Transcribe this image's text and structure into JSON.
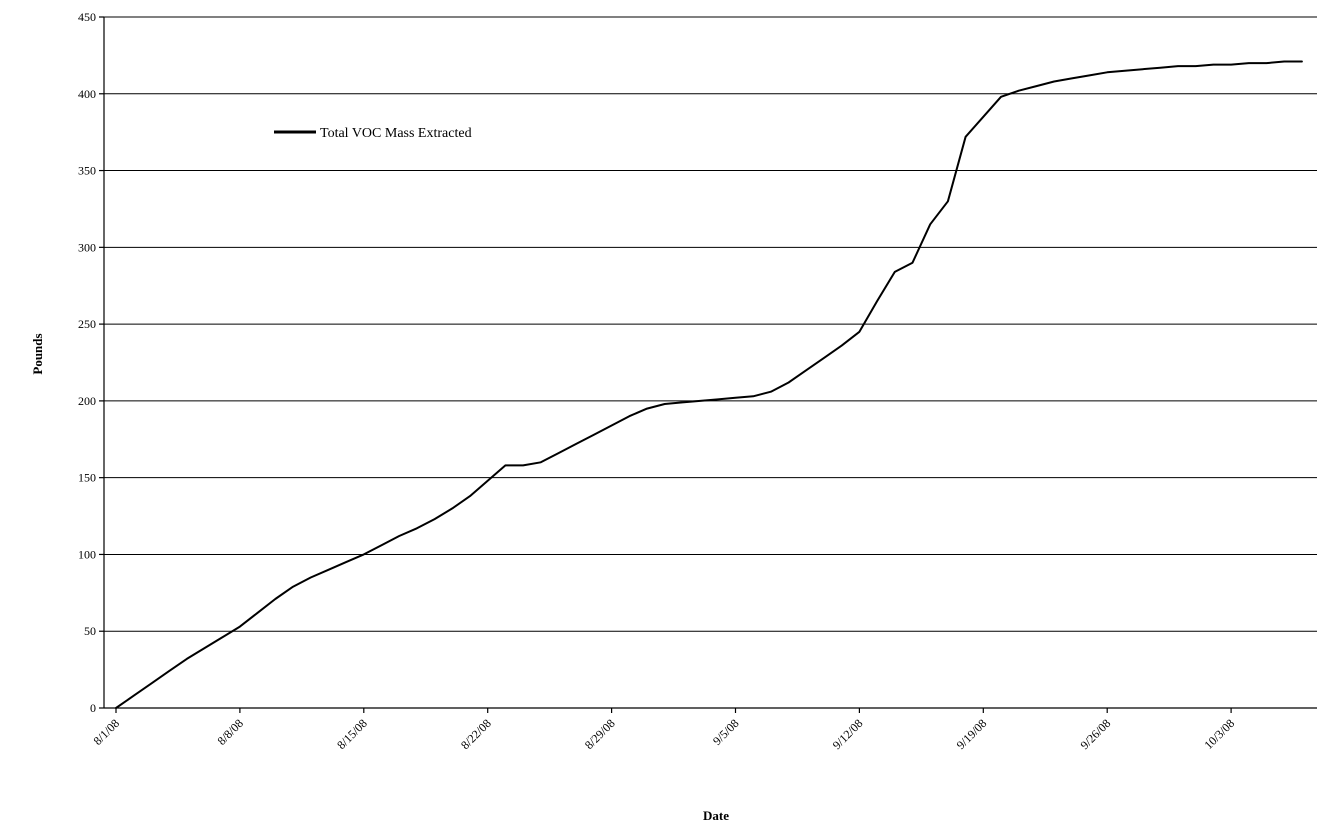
{
  "chart_data": {
    "type": "line",
    "title": "",
    "xlabel": "Date",
    "ylabel": "Pounds",
    "ylim": [
      0,
      450
    ],
    "y_ticks": [
      0,
      50,
      100,
      150,
      200,
      250,
      300,
      350,
      400,
      450
    ],
    "x_range": [
      "2008-08-01",
      "2008-10-07"
    ],
    "x_ticks": [
      {
        "date": "2008-08-01",
        "label": "8/1/08"
      },
      {
        "date": "2008-08-08",
        "label": "8/8/08"
      },
      {
        "date": "2008-08-15",
        "label": "8/15/08"
      },
      {
        "date": "2008-08-22",
        "label": "8/22/08"
      },
      {
        "date": "2008-08-29",
        "label": "8/29/08"
      },
      {
        "date": "2008-09-05",
        "label": "9/5/08"
      },
      {
        "date": "2008-09-12",
        "label": "9/12/08"
      },
      {
        "date": "2008-09-19",
        "label": "9/19/08"
      },
      {
        "date": "2008-09-26",
        "label": "9/26/08"
      },
      {
        "date": "2008-10-03",
        "label": "10/3/08"
      }
    ],
    "grid": true,
    "legend_position": "top-left",
    "series": [
      {
        "name": "Total VOC Mass Extracted",
        "color": "#000000",
        "x": [
          "2008-08-01",
          "2008-08-02",
          "2008-08-03",
          "2008-08-04",
          "2008-08-05",
          "2008-08-06",
          "2008-08-07",
          "2008-08-08",
          "2008-08-09",
          "2008-08-10",
          "2008-08-11",
          "2008-08-12",
          "2008-08-13",
          "2008-08-14",
          "2008-08-15",
          "2008-08-16",
          "2008-08-17",
          "2008-08-18",
          "2008-08-19",
          "2008-08-20",
          "2008-08-21",
          "2008-08-22",
          "2008-08-23",
          "2008-08-24",
          "2008-08-25",
          "2008-08-26",
          "2008-08-27",
          "2008-08-28",
          "2008-08-29",
          "2008-08-30",
          "2008-08-31",
          "2008-09-01",
          "2008-09-02",
          "2008-09-03",
          "2008-09-04",
          "2008-09-05",
          "2008-09-06",
          "2008-09-07",
          "2008-09-08",
          "2008-09-09",
          "2008-09-10",
          "2008-09-11",
          "2008-09-12",
          "2008-09-13",
          "2008-09-14",
          "2008-09-15",
          "2008-09-16",
          "2008-09-17",
          "2008-09-18",
          "2008-09-19",
          "2008-09-20",
          "2008-09-21",
          "2008-09-22",
          "2008-09-23",
          "2008-09-24",
          "2008-09-25",
          "2008-09-26",
          "2008-09-27",
          "2008-09-28",
          "2008-09-29",
          "2008-09-30",
          "2008-10-01",
          "2008-10-02",
          "2008-10-03",
          "2008-10-04",
          "2008-10-05",
          "2008-10-06",
          "2008-10-07"
        ],
        "y": [
          0,
          8,
          16,
          24,
          32,
          39,
          46,
          53,
          62,
          71,
          79,
          85,
          90,
          95,
          100,
          106,
          112,
          117,
          123,
          130,
          138,
          148,
          158,
          158,
          160,
          166,
          172,
          178,
          184,
          190,
          195,
          198,
          199,
          200,
          201,
          202,
          203,
          206,
          212,
          220,
          228,
          236,
          245,
          265,
          284,
          290,
          315,
          330,
          372,
          385,
          398,
          402,
          405,
          408,
          410,
          412,
          414,
          415,
          416,
          417,
          418,
          418,
          419,
          419,
          420,
          420,
          421,
          421
        ]
      }
    ]
  }
}
